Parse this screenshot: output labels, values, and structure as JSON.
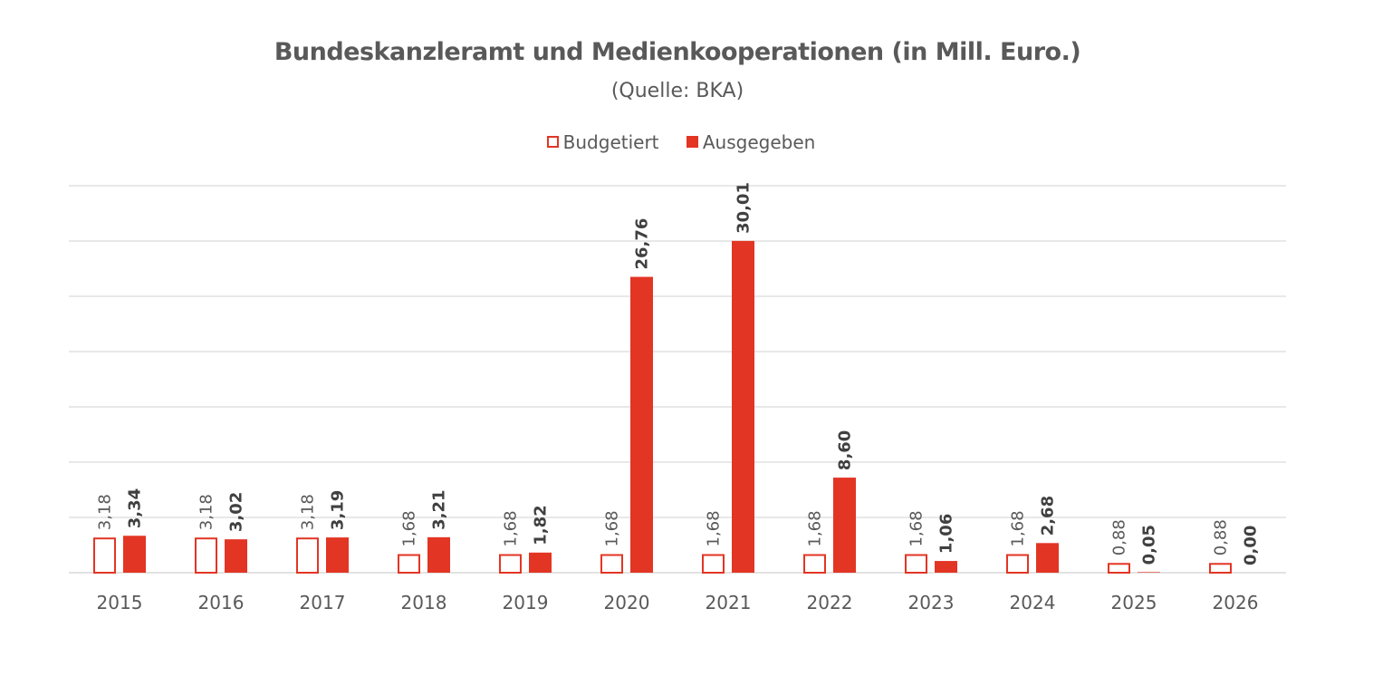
{
  "chart_data": {
    "type": "bar",
    "title": "Bundeskanzleramt und Medienkooperationen (in Mill. Euro.)",
    "subtitle": "(Quelle: BKA)",
    "categories": [
      "2015",
      "2016",
      "2017",
      "2018",
      "2019",
      "2020",
      "2021",
      "2022",
      "2023",
      "2024",
      "2025",
      "2026"
    ],
    "series": [
      {
        "name": "Budgetiert",
        "values": [
          3.18,
          3.18,
          3.18,
          1.68,
          1.68,
          1.68,
          1.68,
          1.68,
          1.68,
          1.68,
          0.88,
          0.88
        ],
        "labels": [
          "3,18",
          "3,18",
          "3,18",
          "1,68",
          "1,68",
          "1,68",
          "1,68",
          "1,68",
          "1,68",
          "1,68",
          "0,88",
          "0,88"
        ],
        "style": "outline"
      },
      {
        "name": "Ausgegeben",
        "values": [
          3.34,
          3.02,
          3.19,
          3.21,
          1.82,
          26.76,
          30.01,
          8.6,
          1.06,
          2.68,
          0.05,
          0.0
        ],
        "labels": [
          "3,34",
          "3,02",
          "3,19",
          "3,21",
          "1,82",
          "26,76",
          "30,01",
          "8,60",
          "1,06",
          "2,68",
          "0,05",
          "0,00"
        ],
        "style": "filled"
      }
    ],
    "ylim": [
      0,
      35
    ],
    "ytick_step": 5,
    "grid": true,
    "y_axis_labels_shown": false,
    "legend_position": "top",
    "colors": {
      "accent": "#e33524",
      "text": "#595959",
      "grid": "#d9d9d9"
    }
  }
}
